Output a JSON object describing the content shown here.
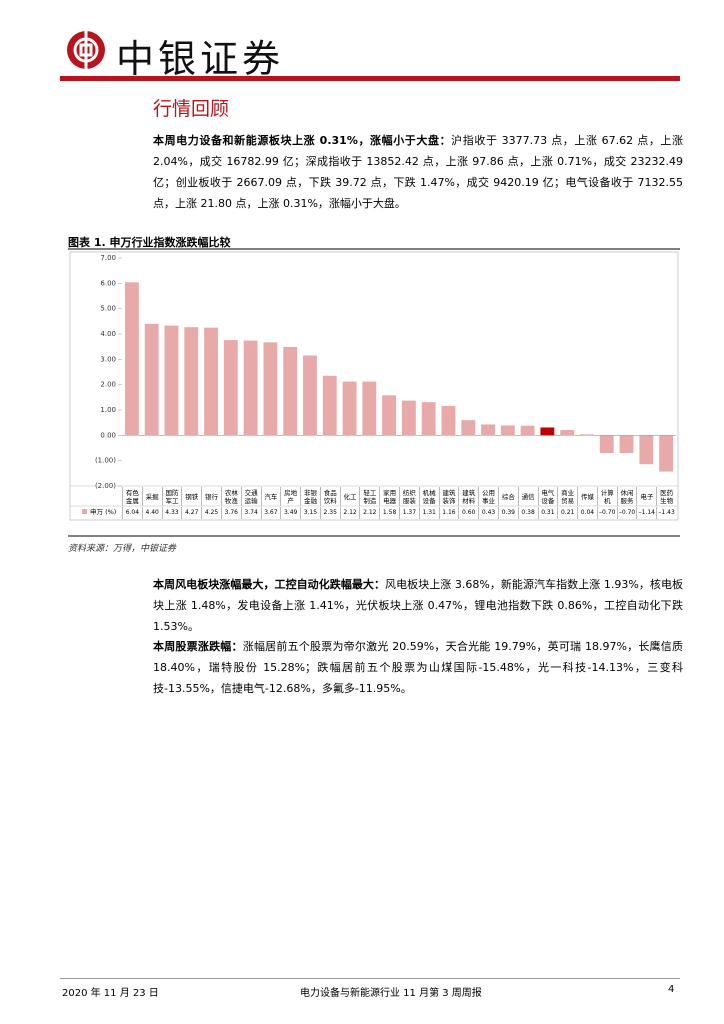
{
  "header": {
    "brand": "中银证券"
  },
  "section_title": "行情回顾",
  "paragraphs": [
    {
      "lead": "本周电力设备和新能源板块上涨 0.31%，涨幅小于大盘：",
      "body": "沪指收于 3377.73 点，上涨 67.62 点，上涨 2.04%，成交 16782.99 亿；深成指收于 13852.42 点，上涨 97.86 点，上涨 0.71%，成交 23232.49 亿；创业板收于 2667.09 点，下跌 39.72 点，下跌 1.47%，成交 9420.19 亿；电气设备收于 7132.55 点，上涨 21.80 点，上涨 0.31%，涨幅小于大盘。"
    },
    {
      "lead": "本周风电板块涨幅最大，工控自动化跌幅最大：",
      "body": "风电板块上涨 3.68%，新能源汽车指数上涨 1.93%，核电板块上涨 1.48%，发电设备上涨 1.41%，光伏板块上涨 0.47%，锂电池指数下跌 0.86%，工控自动化下跌 1.53%。"
    },
    {
      "lead": "本周股票涨跌幅：",
      "body": "涨幅居前五个股票为帝尔激光 20.59%，天合光能 19.79%，英可瑞 18.97%，长鹰信质 18.40%，瑞特股份 15.28%；跌幅居前五个股票为山煤国际-15.48%，光一科技-14.13%，三变科技-13.55%，信捷电气-12.68%，多氟多-11.95%。"
    }
  ],
  "chart_data": {
    "type": "bar",
    "title": "图表 1. 申万行业指数涨跌幅比较",
    "source": "资料来源：万得，中银证券",
    "categories": [
      "有色金属",
      "采掘",
      "国防军工",
      "钢铁",
      "银行",
      "农林牧渔",
      "交通运输",
      "汽车",
      "房地产",
      "非银金融",
      "食品饮料",
      "化工",
      "轻工制造",
      "家用电器",
      "纺织服装",
      "机械设备",
      "建筑装饰",
      "建筑材料",
      "公用事业",
      "综合",
      "通信",
      "电气设备",
      "商业贸易",
      "传媒",
      "计算机",
      "休闲服务",
      "电子",
      "医药生物"
    ],
    "series": [
      {
        "name": "申万 (%)",
        "color": "#e8a9a9",
        "colors": [
          "#e8a9a9",
          "#e8a9a9",
          "#e8a9a9",
          "#e8a9a9",
          "#e8a9a9",
          "#e8a9a9",
          "#e8a9a9",
          "#e8a9a9",
          "#e8a9a9",
          "#e8a9a9",
          "#e8a9a9",
          "#e8a9a9",
          "#e8a9a9",
          "#e8a9a9",
          "#e8a9a9",
          "#e8a9a9",
          "#e8a9a9",
          "#e8a9a9",
          "#e8a9a9",
          "#e8a9a9",
          "#e8a9a9",
          "#c00000",
          "#e8a9a9",
          "#e8a9a9",
          "#e8a9a9",
          "#e8a9a9",
          "#e8a9a9",
          "#e8a9a9"
        ],
        "values": [
          6.04,
          4.4,
          4.33,
          4.27,
          4.25,
          3.76,
          3.74,
          3.67,
          3.49,
          3.15,
          2.35,
          2.12,
          2.12,
          1.58,
          1.37,
          1.31,
          1.16,
          0.6,
          0.43,
          0.39,
          0.38,
          0.31,
          0.21,
          0.04,
          -0.7,
          -0.7,
          -1.14,
          -1.43
        ],
        "value_labels": [
          "6.04",
          "4.40",
          "4.33",
          "4.27",
          "4.25",
          "3.76",
          "3.74",
          "3.67",
          "3.49",
          "3.15",
          "2.35",
          "2.12",
          "2.12",
          "1.58",
          "1.37",
          "1.31",
          "1.16",
          "0.60",
          "0.43",
          "0.39",
          "0.38",
          "0.31",
          "0.21",
          "0.04",
          "–0.70",
          "–0.70",
          "–1.14",
          "–1.43"
        ]
      }
    ],
    "ylim": [
      -2,
      7
    ],
    "yticks": [
      {
        "value": 7,
        "label": "7.00"
      },
      {
        "value": 6,
        "label": "6.00"
      },
      {
        "value": 5,
        "label": "5.00"
      },
      {
        "value": 4,
        "label": "4.00"
      },
      {
        "value": 3,
        "label": "3.00"
      },
      {
        "value": 2,
        "label": "2.00"
      },
      {
        "value": 1,
        "label": "1.00"
      },
      {
        "value": 0,
        "label": "0.00"
      },
      {
        "value": -1,
        "label": "(1.00)"
      },
      {
        "value": -2,
        "label": "(2.00)"
      }
    ]
  },
  "footer": {
    "date": "2020 年 11 月 23 日",
    "report": "电力设备与新能源行业 11 月第 3 周周报",
    "page": "4"
  }
}
